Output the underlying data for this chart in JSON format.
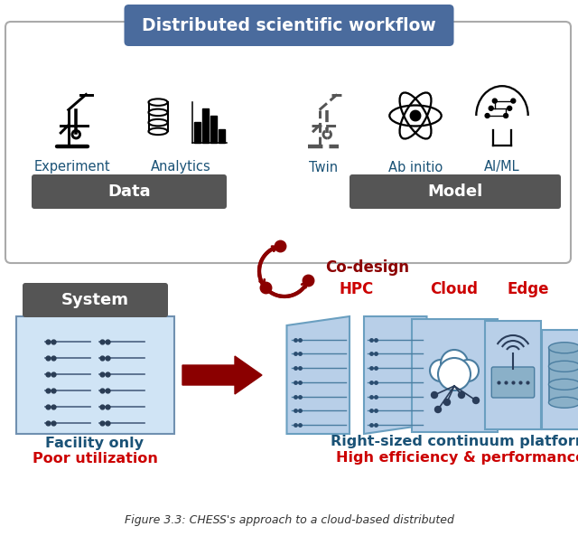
{
  "title": "Distributed scientific workflow",
  "title_bg_color": "#4a6b9d",
  "title_text_color": "white",
  "data_labels": [
    "Experiment",
    "Analytics"
  ],
  "model_labels": [
    "Twin",
    "Ab initio",
    "AI/ML"
  ],
  "data_box_color": "#555555",
  "model_box_color": "#555555",
  "data_box_text": "Data",
  "model_box_text": "Model",
  "codesign_text": "Co-design",
  "codesign_color": "#8b0000",
  "system_box_color": "#555555",
  "system_box_text": "System",
  "hpc_label": "HPC",
  "cloud_label": "Cloud",
  "edge_label": "Edge",
  "label_color_red": "#cc0000",
  "label_color_blue": "#1a5276",
  "facility_line1": "Facility only",
  "facility_line2": "Poor utilization",
  "right_line1": "Right-sized continuum platform",
  "right_line2": "High efficiency & performance",
  "caption": "Figure 3.3: CHESS's approach to a cloud-based distributed",
  "bg_color": "white",
  "arrow_color": "#8b0000",
  "hpc_bg": "#b8cfe8",
  "facility_bg": "#d0e4f5"
}
